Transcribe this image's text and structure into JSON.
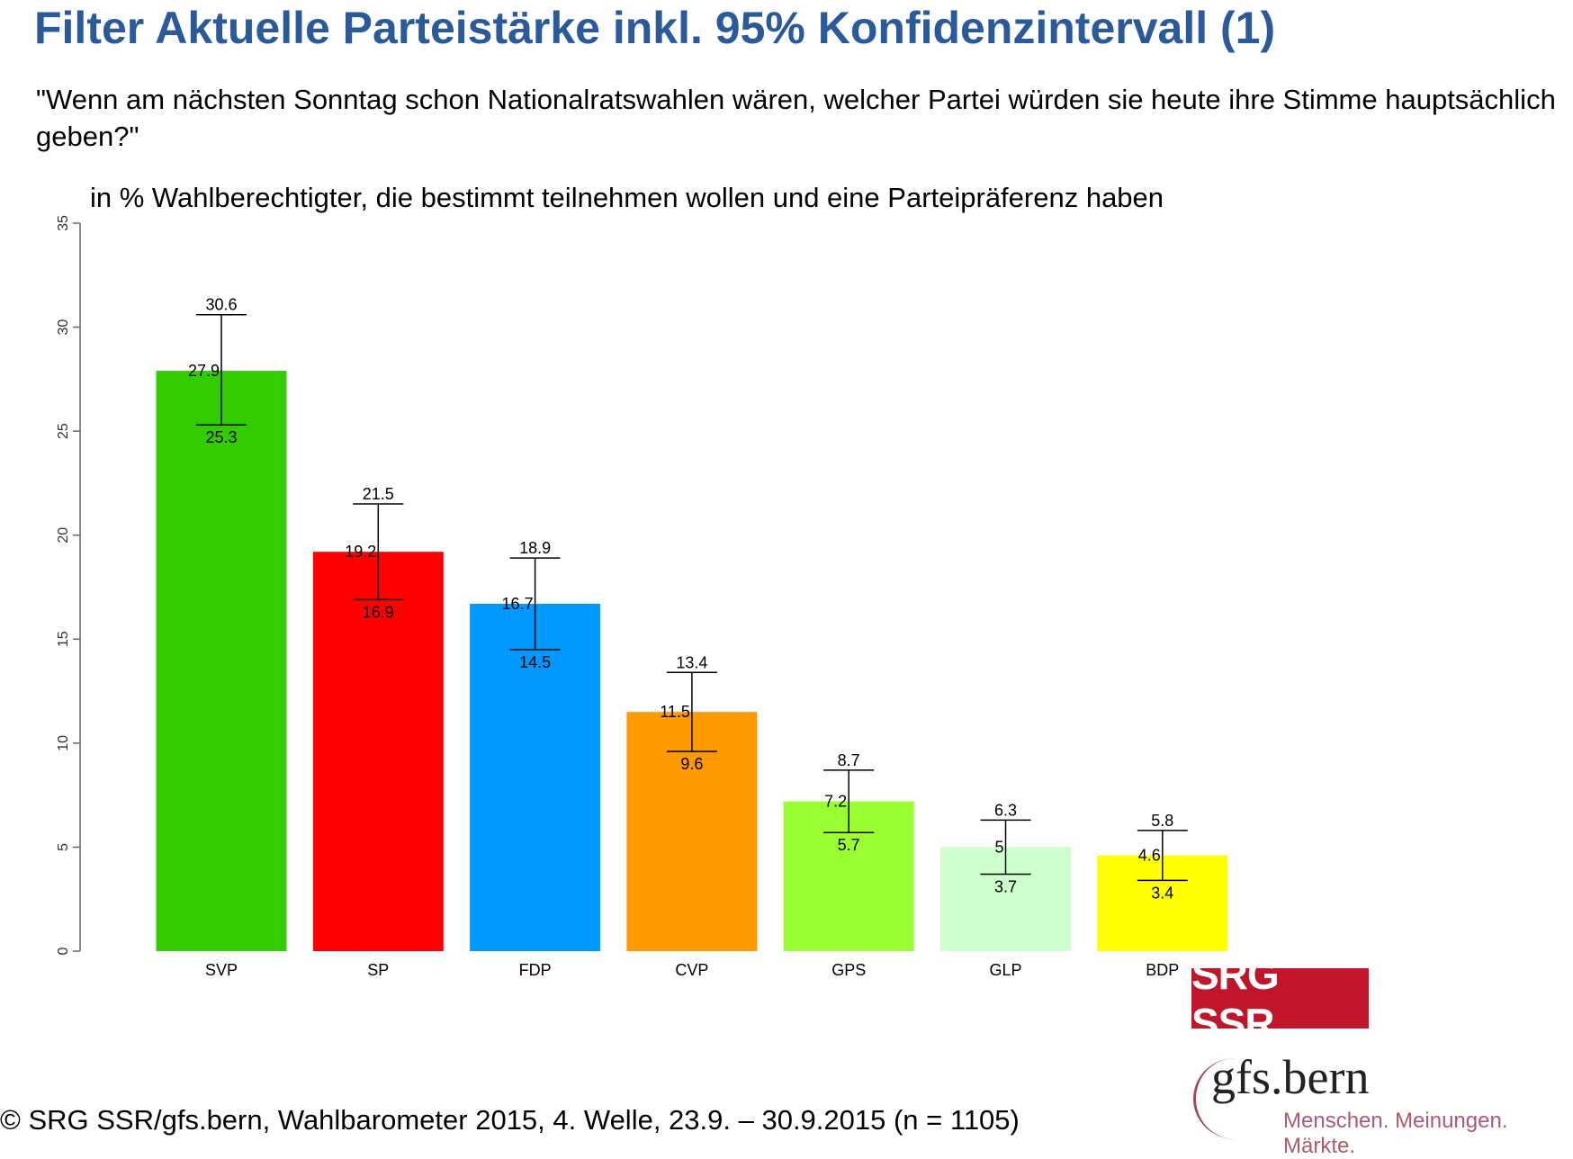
{
  "title": "Filter Aktuelle Parteistärke inkl. 95% Konfidenzintervall (1)",
  "question": "\"Wenn am nächsten Sonntag schon Nationalratswahlen wären, welcher Partei würden sie heute ihre Stimme hauptsächlich geben?\"",
  "subtitle": "in % Wahlberechtigter, die bestimmt teilnehmen wollen und eine Parteipräferenz haben",
  "footer": "© SRG SSR/gfs.bern, Wahlbarometer 2015, 4. Welle, 23.9. – 30.9.2015 (n = 1105)",
  "logos": {
    "srg": "SRG SSR",
    "gfs_name": "gfs.bern",
    "gfs_tagline": "Menschen. Meinungen. Märkte."
  },
  "chart_data": {
    "type": "bar",
    "title": "Filter Aktuelle Parteistärke inkl. 95% Konfidenzintervall (1)",
    "ylabel": "",
    "xlabel": "",
    "ylim": [
      0,
      35
    ],
    "yticks": [
      0,
      5,
      10,
      15,
      20,
      25,
      30,
      35
    ],
    "grid": false,
    "categories": [
      "SVP",
      "SP",
      "FDP",
      "CVP",
      "GPS",
      "GLP",
      "BDP"
    ],
    "values": [
      27.9,
      19.2,
      16.7,
      11.5,
      7.2,
      5,
      4.6
    ],
    "ci_upper": [
      30.6,
      21.5,
      18.9,
      13.4,
      8.7,
      6.3,
      5.8
    ],
    "ci_lower": [
      25.3,
      16.9,
      14.5,
      9.6,
      5.7,
      3.7,
      3.4
    ],
    "colors": [
      "#33cc00",
      "#ff0000",
      "#0099ff",
      "#ff9900",
      "#99ff33",
      "#ccffcc",
      "#ffff00"
    ]
  }
}
